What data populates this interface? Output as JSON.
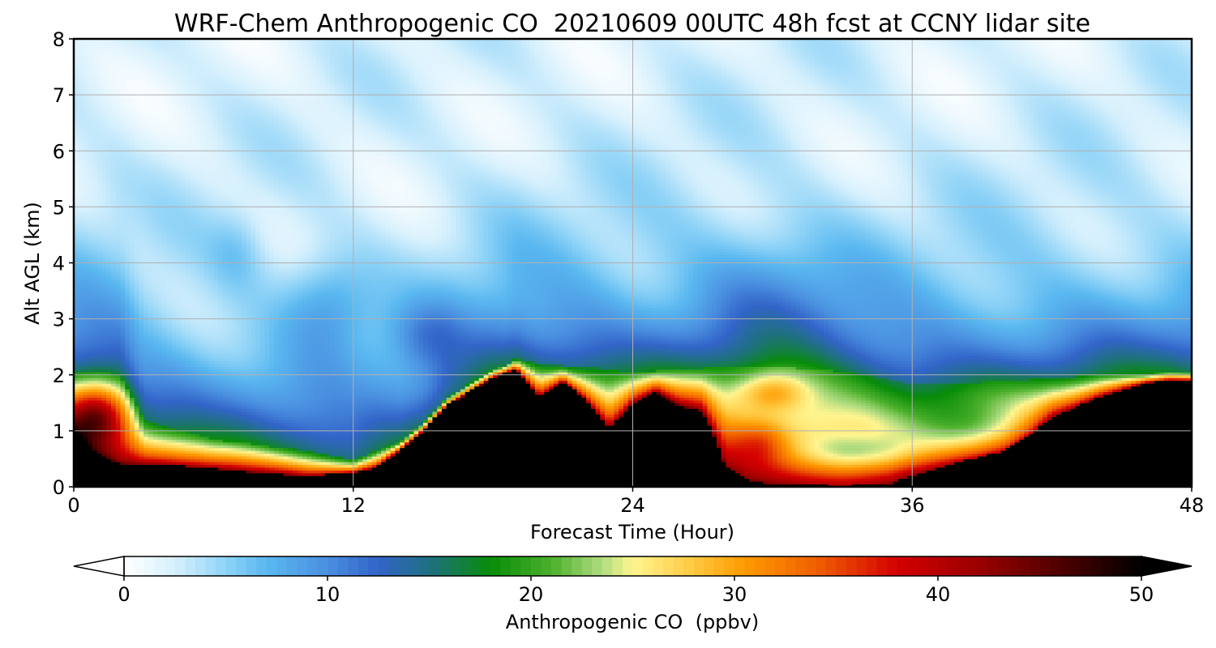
{
  "chart_data": {
    "type": "heatmap",
    "title": "WRF-Chem Anthropogenic CO  20210609 00UTC 48h fcst at CCNY lidar site",
    "xlabel": "Forecast Time (Hour)",
    "ylabel": "Alt AGL (km)",
    "xlim": [
      0,
      48
    ],
    "ylim": [
      0,
      8
    ],
    "x_ticks": [
      0,
      12,
      24,
      36,
      48
    ],
    "y_ticks": [
      0,
      1,
      2,
      3,
      4,
      5,
      6,
      7,
      8
    ],
    "grid": true,
    "colorbar": {
      "label": "Anthropogenic CO  (ppbv)",
      "min": 0,
      "max": 50,
      "ticks": [
        0,
        10,
        20,
        30,
        40,
        50
      ],
      "extend": "both",
      "stops": [
        {
          "v": 0,
          "c": "#ffffff"
        },
        {
          "v": 2.5,
          "c": "#d6f0fd"
        },
        {
          "v": 5,
          "c": "#8fd3f7"
        },
        {
          "v": 7,
          "c": "#5ab8f0"
        },
        {
          "v": 10,
          "c": "#4a8fe0"
        },
        {
          "v": 12.5,
          "c": "#3264c8"
        },
        {
          "v": 15,
          "c": "#1f7080"
        },
        {
          "v": 18,
          "c": "#088c08"
        },
        {
          "v": 21,
          "c": "#4cb02c"
        },
        {
          "v": 23.5,
          "c": "#b0dc80"
        },
        {
          "v": 25,
          "c": "#fff590"
        },
        {
          "v": 28,
          "c": "#ffc840"
        },
        {
          "v": 30.5,
          "c": "#ff9a00"
        },
        {
          "v": 34,
          "c": "#f06000"
        },
        {
          "v": 38,
          "c": "#d40000"
        },
        {
          "v": 42,
          "c": "#9a0000"
        },
        {
          "v": 46,
          "c": "#500000"
        },
        {
          "v": 50,
          "c": "#000000"
        }
      ]
    },
    "blh_km": [
      [
        0,
        1.0
      ],
      [
        1,
        0.6
      ],
      [
        2,
        0.42
      ],
      [
        4,
        0.4
      ],
      [
        6,
        0.33
      ],
      [
        8,
        0.25
      ],
      [
        10,
        0.2
      ],
      [
        12,
        0.26
      ],
      [
        13,
        0.35
      ],
      [
        14,
        0.65
      ],
      [
        15,
        1.0
      ],
      [
        16,
        1.45
      ],
      [
        17,
        1.7
      ],
      [
        18,
        1.95
      ],
      [
        19,
        2.1
      ],
      [
        19.5,
        1.85
      ],
      [
        20,
        1.6
      ],
      [
        21,
        1.9
      ],
      [
        22,
        1.55
      ],
      [
        22.5,
        1.3
      ],
      [
        23,
        1.05
      ],
      [
        24,
        1.5
      ],
      [
        25,
        1.7
      ],
      [
        26,
        1.45
      ],
      [
        27,
        1.35
      ],
      [
        27.5,
        0.9
      ],
      [
        28,
        0.35
      ],
      [
        29,
        0.12
      ],
      [
        30,
        0.05
      ],
      [
        33,
        0.02
      ],
      [
        35,
        0.05
      ],
      [
        36,
        0.2
      ],
      [
        38,
        0.45
      ],
      [
        40,
        0.65
      ],
      [
        41,
        0.9
      ],
      [
        42,
        1.25
      ],
      [
        44,
        1.6
      ],
      [
        46,
        1.85
      ],
      [
        47,
        1.9
      ],
      [
        48,
        1.9
      ]
    ],
    "mix_top_km": [
      [
        0,
        2.05
      ],
      [
        1,
        2.05
      ],
      [
        2,
        2.0
      ],
      [
        3,
        1.2
      ],
      [
        6,
        0.85
      ],
      [
        10,
        0.65
      ],
      [
        12,
        0.5
      ],
      [
        14,
        0.8
      ],
      [
        16,
        1.5
      ],
      [
        18,
        2.05
      ],
      [
        19,
        2.3
      ],
      [
        20,
        2.2
      ],
      [
        22,
        2.15
      ],
      [
        24,
        2.05
      ],
      [
        26,
        2.1
      ],
      [
        28,
        2.15
      ],
      [
        30,
        2.15
      ],
      [
        32,
        2.1
      ],
      [
        34,
        2.0
      ],
      [
        36,
        1.85
      ],
      [
        38,
        1.85
      ],
      [
        40,
        1.9
      ],
      [
        42,
        1.95
      ],
      [
        44,
        2.0
      ],
      [
        46,
        2.0
      ],
      [
        48,
        2.0
      ]
    ],
    "pockets": [
      {
        "t": 1.0,
        "z": 1.3,
        "st": 1.3,
        "sz": 0.55,
        "amp": 18
      },
      {
        "t": 11.0,
        "z": 3.3,
        "st": 2.0,
        "sz": 0.9,
        "amp": 5
      },
      {
        "t": 15.0,
        "z": 2.7,
        "st": 1.5,
        "sz": 0.6,
        "amp": 4
      },
      {
        "t": 30.0,
        "z": 3.5,
        "st": 3.5,
        "sz": 1.2,
        "amp": 3
      },
      {
        "t": 7.0,
        "z": 4.2,
        "st": 1.2,
        "sz": 0.7,
        "amp": 2.5
      },
      {
        "t": 34.0,
        "z": 0.6,
        "st": 3.0,
        "sz": 0.35,
        "amp": -8
      },
      {
        "t": 39.0,
        "z": 1.0,
        "st": 3.0,
        "sz": 0.5,
        "amp": -7
      },
      {
        "t": 29.5,
        "z": 0.8,
        "st": 1.2,
        "sz": 0.4,
        "amp": 6
      },
      {
        "t": 30.0,
        "z": 1.7,
        "st": 1.5,
        "sz": 0.35,
        "amp": 8
      }
    ]
  }
}
